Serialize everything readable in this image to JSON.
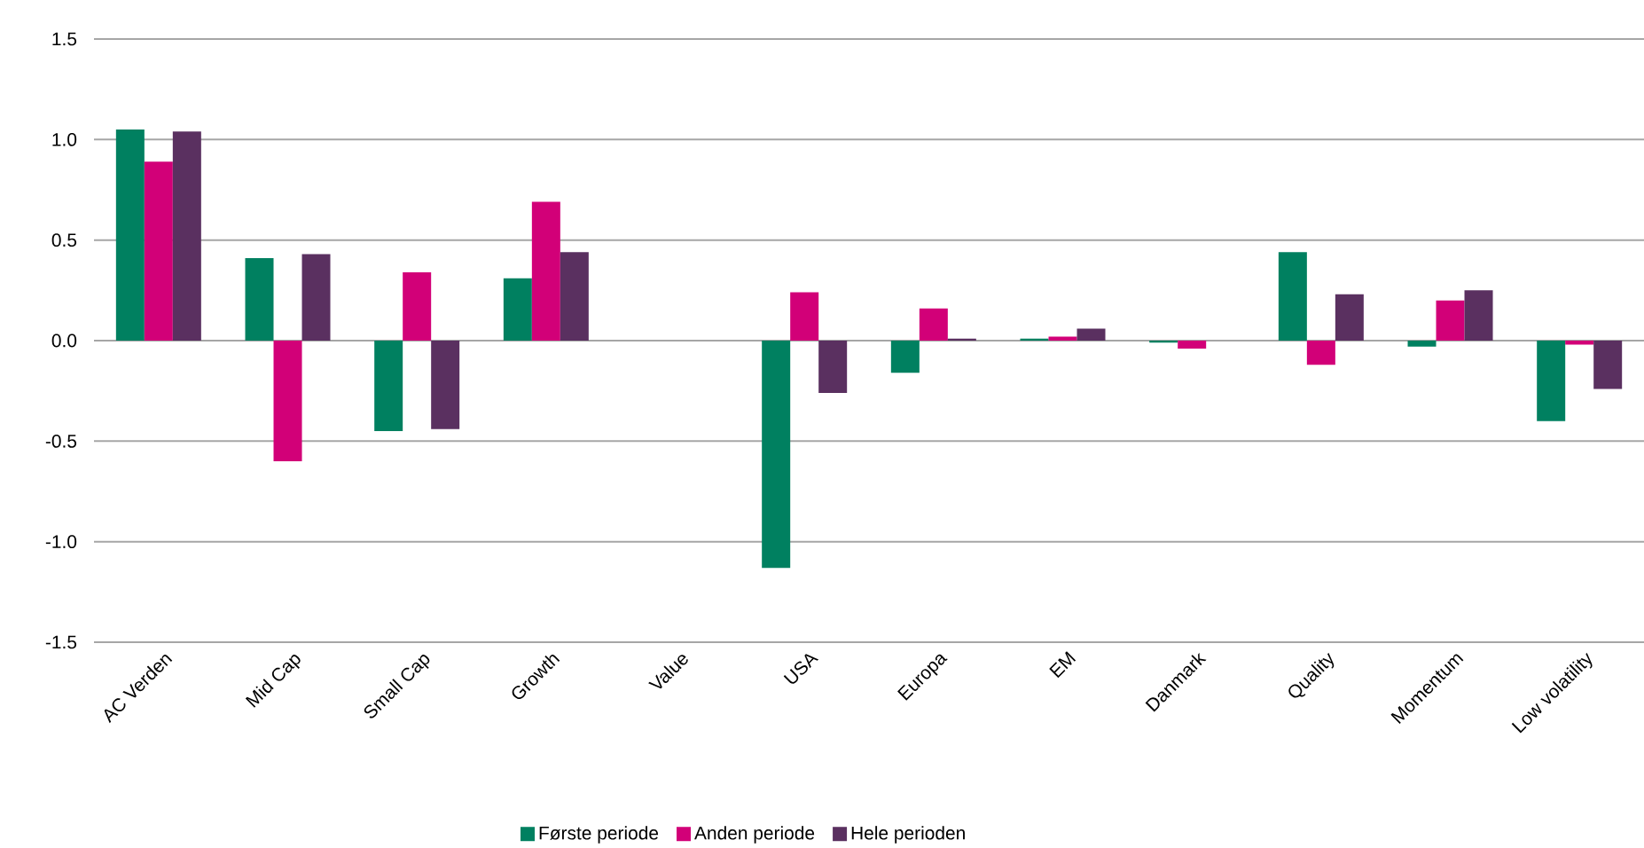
{
  "chart_data": {
    "type": "bar",
    "categories": [
      "AC Verden",
      "Mid Cap",
      "Small Cap",
      "Growth",
      "Value",
      "USA",
      "Europa",
      "EM",
      "Danmark",
      "Quality",
      "Momentum",
      "Low volatility"
    ],
    "series": [
      {
        "name": "Første periode",
        "color": "#008060",
        "values": [
          1.05,
          0.41,
          -0.45,
          0.31,
          0,
          -1.13,
          -0.16,
          0.01,
          -0.01,
          0.44,
          -0.03,
          -0.4
        ]
      },
      {
        "name": "Anden periode",
        "color": "#d20078",
        "values": [
          0.89,
          -0.6,
          0.34,
          0.69,
          0,
          0.24,
          0.16,
          0.02,
          -0.04,
          -0.12,
          0.2,
          -0.02
        ]
      },
      {
        "name": "Hele perioden",
        "color": "#5a3060",
        "values": [
          1.04,
          0.43,
          -0.44,
          0.44,
          0,
          -0.26,
          0.01,
          0.06,
          0.0,
          0.23,
          0.25,
          -0.24
        ]
      }
    ],
    "ylim": [
      -1.5,
      1.5
    ],
    "yticks": [
      -1.5,
      {
        "value": -1,
        "label": "-1.0"
      },
      -0.5,
      {
        "value": 0,
        "label": "0.0"
      },
      0.5,
      {
        "value": 1,
        "label": "1.0"
      },
      1.5
    ],
    "grid": "y",
    "legend": "bottom"
  }
}
